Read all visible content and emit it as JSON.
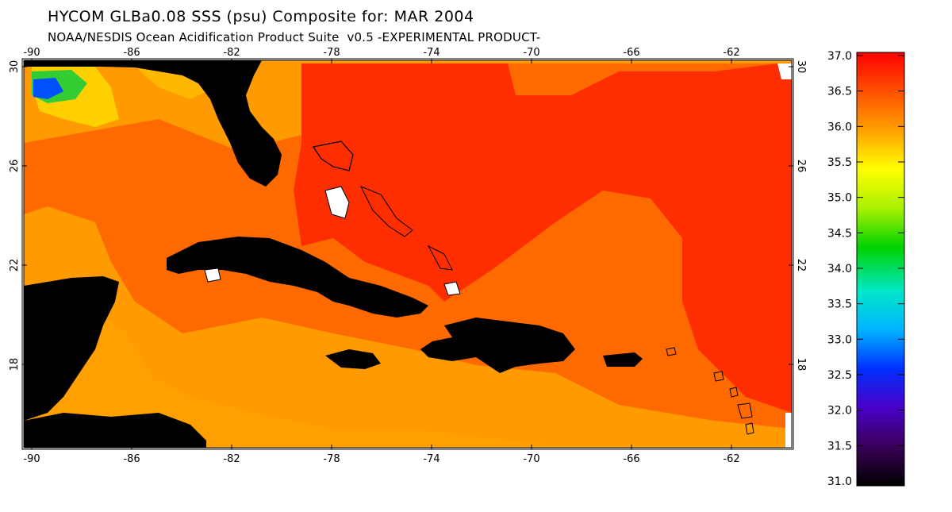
{
  "header": {
    "title": "HYCOM GLBa0.08 SSS (psu) Composite for: MAR 2004",
    "subtitle": "NOAA/NESDIS Ocean Acidification Product Suite  v0.5 -EXPERIMENTAL PRODUCT-"
  },
  "map": {
    "lon_ticks": [
      "-90",
      "-86",
      "-82",
      "-78",
      "-74",
      "-70",
      "-66",
      "-62"
    ],
    "lat_ticks": [
      "30",
      "26",
      "22",
      "18"
    ],
    "colors": {
      "land": "#000000",
      "ocean_high": "#ff2a00",
      "ocean_mid": "#ff5a00",
      "ocean_low": "#ff9600",
      "ocean_lower": "#ffa800"
    }
  },
  "colorbar": {
    "labels": [
      "37.0",
      "36.5",
      "36.0",
      "35.5",
      "35.0",
      "34.5",
      "34.0",
      "33.5",
      "33.0",
      "32.5",
      "32.0",
      "31.5",
      "31.0"
    ]
  }
}
